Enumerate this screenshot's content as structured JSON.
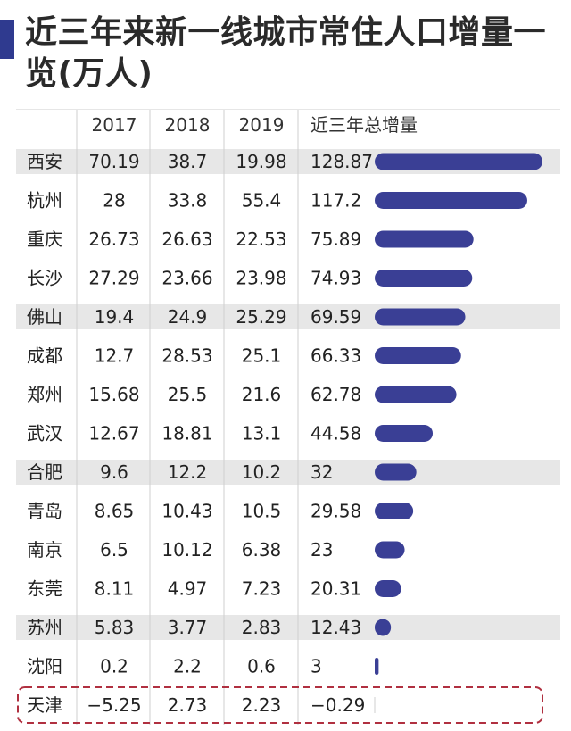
{
  "title": "近三年来新一线城市常住人口增量一览(万人)",
  "colors": {
    "bar": "#3a3f95",
    "stripe": "#e7e7e7",
    "highlight_border": "#b03040",
    "divider": "#cfcfcf",
    "accent": "#2f3a8f"
  },
  "chart_data": {
    "type": "table",
    "columns": [
      "2017",
      "2018",
      "2019",
      "近三年总增量"
    ],
    "rows": [
      {
        "city": "西安",
        "values": [
          "70.19",
          "38.7",
          "19.98",
          "128.87"
        ],
        "total": 128.87,
        "shaded": true
      },
      {
        "city": "杭州",
        "values": [
          "28",
          "33.8",
          "55.4",
          "117.2"
        ],
        "total": 117.2,
        "shaded": false
      },
      {
        "city": "重庆",
        "values": [
          "26.73",
          "26.63",
          "22.53",
          "75.89"
        ],
        "total": 75.89,
        "shaded": false
      },
      {
        "city": "长沙",
        "values": [
          "27.29",
          "23.66",
          "23.98",
          "74.93"
        ],
        "total": 74.93,
        "shaded": false
      },
      {
        "city": "佛山",
        "values": [
          "19.4",
          "24.9",
          "25.29",
          "69.59"
        ],
        "total": 69.59,
        "shaded": true
      },
      {
        "city": "成都",
        "values": [
          "12.7",
          "28.53",
          "25.1",
          "66.33"
        ],
        "total": 66.33,
        "shaded": false
      },
      {
        "city": "郑州",
        "values": [
          "15.68",
          "25.5",
          "21.6",
          "62.78"
        ],
        "total": 62.78,
        "shaded": false
      },
      {
        "city": "武汉",
        "values": [
          "12.67",
          "18.81",
          "13.1",
          "44.58"
        ],
        "total": 44.58,
        "shaded": false
      },
      {
        "city": "合肥",
        "values": [
          "9.6",
          "12.2",
          "10.2",
          "32"
        ],
        "total": 32,
        "shaded": true
      },
      {
        "city": "青岛",
        "values": [
          "8.65",
          "10.43",
          "10.5",
          "29.58"
        ],
        "total": 29.58,
        "shaded": false
      },
      {
        "city": "南京",
        "values": [
          "6.5",
          "10.12",
          "6.38",
          "23"
        ],
        "total": 23,
        "shaded": false
      },
      {
        "city": "东莞",
        "values": [
          "8.11",
          "4.97",
          "7.23",
          "20.31"
        ],
        "total": 20.31,
        "shaded": false
      },
      {
        "city": "苏州",
        "values": [
          "5.83",
          "3.77",
          "2.83",
          "12.43"
        ],
        "total": 12.43,
        "shaded": true
      },
      {
        "city": "沈阳",
        "values": [
          "0.2",
          "2.2",
          "0.6",
          "3"
        ],
        "total": 3,
        "shaded": false
      },
      {
        "city": "天津",
        "values": [
          "−5.25",
          "2.73",
          "2.23",
          "−0.29"
        ],
        "total": -0.29,
        "shaded": false,
        "highlighted": true
      }
    ],
    "bar_max": 128.87
  }
}
